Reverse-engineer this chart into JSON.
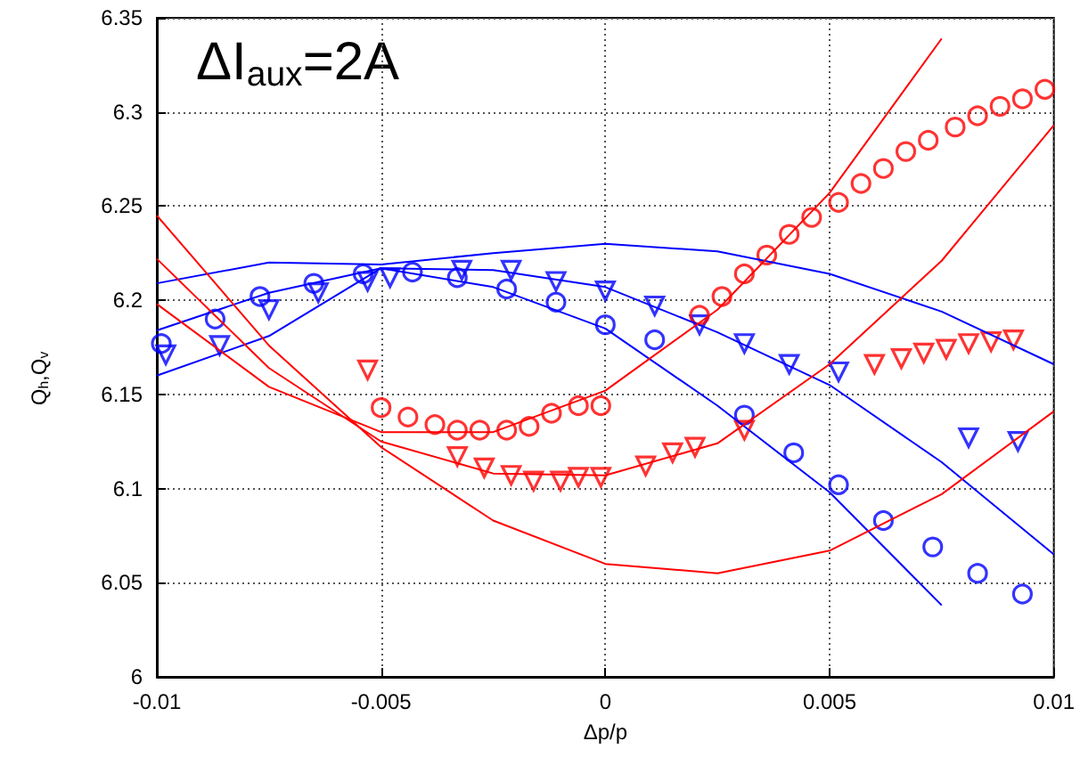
{
  "chart_data": {
    "type": "scatter",
    "xlabel": "Δp/p",
    "ylabel": "Q$_{h}$,Q$_{v}$",
    "annotations": [
      "ΔI$_{aux}$=2A"
    ],
    "xlim": [
      -0.01,
      0.01
    ],
    "xticks": [
      -0.01,
      -0.005,
      0,
      0.005,
      0.01
    ],
    "ylim": [
      6,
      6.35
    ],
    "yticks": [
      6,
      6.05,
      6.1,
      6.15,
      6.2,
      6.25,
      6.3,
      6.35
    ],
    "grid": true,
    "series": [
      {
        "marker": "circle",
        "color": "#0000ff",
        "x": [
          -0.0099,
          -0.0087,
          -0.0077,
          -0.0065,
          -0.0054,
          -0.0043,
          -0.0033,
          -0.0022,
          -0.0011,
          0,
          0.0011,
          0.0031,
          0.0042,
          0.0052,
          0.0062,
          0.0073,
          0.0083,
          0.0093
        ],
        "values": [
          6.177,
          6.19,
          6.202,
          6.209,
          6.214,
          6.215,
          6.212,
          6.206,
          6.199,
          6.187,
          6.179,
          6.139,
          6.119,
          6.102,
          6.083,
          6.069,
          6.055,
          6.044
        ]
      },
      {
        "marker": "triangle",
        "color": "#0000ff",
        "x": [
          -0.0098,
          -0.0086,
          -0.0075,
          -0.0064,
          -0.0053,
          -0.0048,
          -0.0032,
          -0.0021,
          -0.0011,
          0,
          0.0011,
          0.0021,
          0.0031,
          0.0041,
          0.0052,
          0.0081,
          0.0092
        ],
        "values": [
          6.171,
          6.176,
          6.195,
          6.204,
          6.21,
          6.212,
          6.216,
          6.216,
          6.21,
          6.205,
          6.197,
          6.187,
          6.177,
          6.166,
          6.162,
          6.127,
          6.125
        ]
      },
      {
        "marker": "circle",
        "color": "#ff0000",
        "x": [
          -0.005,
          -0.0044,
          -0.0038,
          -0.0033,
          -0.0028,
          -0.0022,
          -0.0017,
          -0.0012,
          -0.0006,
          -0.0001,
          0.0021,
          0.0026,
          0.0031,
          0.0036,
          0.0041,
          0.0046,
          0.0052,
          0.0057,
          0.0062,
          0.0067,
          0.0072,
          0.0078,
          0.0083,
          0.0088,
          0.0093,
          0.0098
        ],
        "values": [
          6.143,
          6.138,
          6.134,
          6.131,
          6.131,
          6.131,
          6.133,
          6.14,
          6.144,
          6.144,
          6.192,
          6.202,
          6.214,
          6.224,
          6.235,
          6.244,
          6.252,
          6.262,
          6.27,
          6.279,
          6.285,
          6.292,
          6.298,
          6.303,
          6.307,
          6.312
        ]
      },
      {
        "marker": "triangle",
        "color": "#ff0000",
        "x": [
          -0.0053,
          -0.0033,
          -0.0027,
          -0.0021,
          -0.0016,
          -0.001,
          -0.0006,
          -0.0001,
          0.0009,
          0.0015,
          0.002,
          0.0031,
          0.006,
          0.0066,
          0.0071,
          0.0076,
          0.0081,
          0.0086,
          0.0091
        ],
        "values": [
          6.163,
          6.117,
          6.111,
          6.107,
          6.104,
          6.104,
          6.106,
          6.106,
          6.112,
          6.119,
          6.122,
          6.131,
          6.166,
          6.169,
          6.172,
          6.174,
          6.177,
          6.178,
          6.179
        ]
      },
      {
        "type": "line",
        "marker": "none",
        "color": "#0000ff",
        "x": [
          -0.01,
          -0.0075,
          -0.005,
          -0.0025,
          0,
          0.0025,
          0.005,
          0.0075,
          0.01
        ],
        "values": [
          6.209,
          6.22,
          6.219,
          6.225,
          6.23,
          6.226,
          6.214,
          6.194,
          6.166
        ]
      },
      {
        "type": "line",
        "marker": "none",
        "color": "#0000ff",
        "x": [
          -0.01,
          -0.0075,
          -0.005,
          -0.0025,
          0,
          0.0025,
          0.005,
          0.0075
        ],
        "values": [
          6.184,
          6.204,
          6.217,
          6.207,
          6.185,
          6.144,
          6.098,
          6.038
        ]
      },
      {
        "type": "line",
        "marker": "none",
        "color": "#0000ff",
        "x": [
          -0.01,
          -0.0075,
          -0.005,
          -0.0025,
          0,
          0.0025,
          0.005,
          0.0075,
          0.01
        ],
        "values": [
          6.16,
          6.181,
          6.217,
          6.216,
          6.207,
          6.183,
          6.155,
          6.114,
          6.065
        ]
      },
      {
        "type": "line",
        "marker": "none",
        "color": "#ff0000",
        "x": [
          -0.01,
          -0.0075,
          -0.005,
          -0.0025,
          0,
          0.0025,
          0.005,
          0.0075,
          0.01
        ],
        "values": [
          6.245,
          6.176,
          6.122,
          6.083,
          6.06,
          6.055,
          6.067,
          6.097,
          6.141
        ]
      },
      {
        "type": "line",
        "marker": "none",
        "color": "#ff0000",
        "x": [
          -0.01,
          -0.0075,
          -0.005,
          -0.0025,
          0,
          0.0025,
          0.005,
          0.0075,
          0.01
        ],
        "values": [
          6.222,
          6.164,
          6.125,
          6.108,
          6.107,
          6.124,
          6.166,
          6.221,
          6.293
        ]
      },
      {
        "type": "line",
        "marker": "none",
        "color": "#ff0000",
        "x": [
          -0.01,
          -0.0075,
          -0.005,
          -0.0025,
          0,
          0.0025,
          0.005,
          0.0075
        ],
        "values": [
          6.198,
          6.154,
          6.13,
          6.13,
          6.152,
          6.195,
          6.257,
          6.339
        ]
      }
    ]
  }
}
